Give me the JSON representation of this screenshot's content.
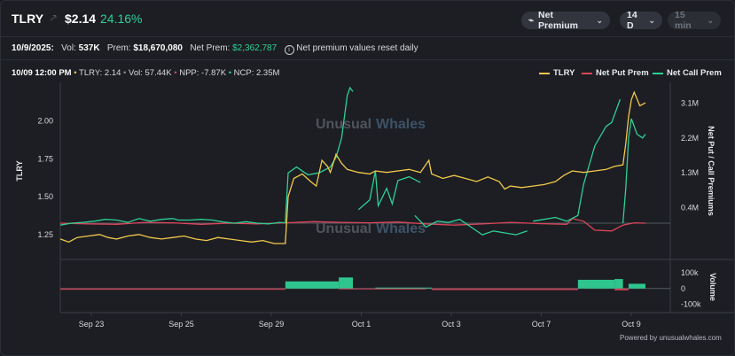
{
  "header": {
    "ticker": "TLRY",
    "price": "$2.14",
    "change_pct": "24.16%",
    "metric_select": "Net Premium",
    "timeframe_select": "14 D",
    "interval_select": "15 min"
  },
  "stats": {
    "date_label": "10/9/2025:",
    "vol_label": "Vol:",
    "vol_value": "537K",
    "prem_label": "Prem:",
    "prem_value": "$18,670,080",
    "net_prem_label": "Net Prem:",
    "net_prem_value": "$2,362,787",
    "info_note": "Net premium values reset daily"
  },
  "readout": {
    "time": "10/09 12:00 PM",
    "tlry": "TLRY: 2.14",
    "vol": "Vol: 57.44K",
    "npp": "NPP: -7.87K",
    "ncp": "NCP: 2.35M"
  },
  "legend": [
    {
      "label": "TLRY",
      "color": "#f2c84b"
    },
    {
      "label": "Net Put Prem",
      "color": "#e0455a"
    },
    {
      "label": "Net Call Prem",
      "color": "#2fcf95"
    }
  ],
  "watermark": {
    "brand1": "Unusual",
    "brand2": "Whales"
  },
  "powered_by": "Powered by unusualwhales.com",
  "chart_data": {
    "type": "line",
    "x_tick_labels": [
      "Sep 23",
      "Sep 25",
      "Sep 29",
      "Oct 1",
      "Oct 3",
      "Oct 7",
      "Oct 9"
    ],
    "left_axis": {
      "label": "TLRY",
      "ticks": [
        "2.00",
        "1.75",
        "1.50",
        "1.25"
      ],
      "range": [
        1.12,
        2.22
      ]
    },
    "right_axis": {
      "label": "Net Put / Call Premiums",
      "ticks": [
        "3.1M",
        "2.2M",
        "1.3M",
        "0.4M"
      ],
      "range": [
        -0.8,
        3.5
      ],
      "unit": "M"
    },
    "volume_axis": {
      "label": "Volume",
      "ticks": [
        "100k",
        "0",
        "-100k"
      ],
      "range": [
        -130,
        150
      ],
      "unit": "k"
    },
    "series": [
      {
        "name": "TLRY",
        "color": "#f2c84b",
        "points": [
          [
            0,
            1.22
          ],
          [
            0.15,
            1.2
          ],
          [
            0.3,
            1.23
          ],
          [
            0.5,
            1.24
          ],
          [
            0.7,
            1.25
          ],
          [
            0.85,
            1.23
          ],
          [
            1,
            1.22
          ],
          [
            1.2,
            1.24
          ],
          [
            1.4,
            1.25
          ],
          [
            1.6,
            1.23
          ],
          [
            1.8,
            1.22
          ],
          [
            2,
            1.23
          ],
          [
            2.2,
            1.24
          ],
          [
            2.4,
            1.22
          ],
          [
            2.6,
            1.21
          ],
          [
            2.8,
            1.23
          ],
          [
            3,
            1.22
          ],
          [
            3.2,
            1.21
          ],
          [
            3.4,
            1.2
          ],
          [
            3.6,
            1.21
          ],
          [
            3.8,
            1.19
          ],
          [
            4,
            1.19
          ],
          [
            4.05,
            1.5
          ],
          [
            4.15,
            1.62
          ],
          [
            4.3,
            1.65
          ],
          [
            4.45,
            1.6
          ],
          [
            4.55,
            1.57
          ],
          [
            4.65,
            1.74
          ],
          [
            4.75,
            1.7
          ],
          [
            4.8,
            1.66
          ],
          [
            4.9,
            1.78
          ],
          [
            5,
            1.72
          ],
          [
            5.1,
            1.68
          ],
          [
            5.3,
            1.66
          ],
          [
            5.5,
            1.65
          ],
          [
            5.6,
            1.67
          ],
          [
            5.8,
            1.66
          ],
          [
            6,
            1.67
          ],
          [
            6.2,
            1.68
          ],
          [
            6.4,
            1.66
          ],
          [
            6.55,
            1.74
          ],
          [
            6.6,
            1.65
          ],
          [
            6.8,
            1.62
          ],
          [
            7,
            1.64
          ],
          [
            7.2,
            1.62
          ],
          [
            7.4,
            1.6
          ],
          [
            7.6,
            1.63
          ],
          [
            7.8,
            1.6
          ],
          [
            7.9,
            1.55
          ],
          [
            8,
            1.57
          ],
          [
            8.2,
            1.56
          ],
          [
            8.4,
            1.57
          ],
          [
            8.6,
            1.58
          ],
          [
            8.8,
            1.6
          ],
          [
            8.95,
            1.64
          ],
          [
            9.1,
            1.67
          ],
          [
            9.3,
            1.66
          ],
          [
            9.5,
            1.67
          ],
          [
            9.7,
            1.68
          ],
          [
            9.85,
            1.7
          ],
          [
            10,
            1.71
          ],
          [
            10.05,
            1.85
          ],
          [
            10.1,
            2.03
          ],
          [
            10.15,
            2.14
          ],
          [
            10.2,
            2.19
          ],
          [
            10.3,
            2.1
          ],
          [
            10.4,
            2.12
          ]
        ]
      },
      {
        "name": "Net Put Prem",
        "color": "#e0455a",
        "points": [
          [
            0,
            0
          ],
          [
            0.5,
            -0.02
          ],
          [
            1,
            -0.03
          ],
          [
            1.5,
            0.02
          ],
          [
            2,
            0.01
          ],
          [
            2.5,
            -0.03
          ],
          [
            3,
            0
          ],
          [
            3.5,
            -0.02
          ],
          [
            4,
            0.01
          ],
          [
            4.5,
            0.04
          ],
          [
            5,
            0.02
          ],
          [
            5.5,
            0.01
          ],
          [
            6,
            0.03
          ],
          [
            6.5,
            -0.02
          ],
          [
            7,
            -0.05
          ],
          [
            7.5,
            -0.02
          ],
          [
            8,
            0.02
          ],
          [
            8.5,
            -0.01
          ],
          [
            9,
            -0.03
          ],
          [
            9.1,
            0.12
          ],
          [
            9.3,
            0.05
          ],
          [
            9.5,
            -0.18
          ],
          [
            9.8,
            -0.2
          ],
          [
            10,
            -0.05
          ],
          [
            10.2,
            0.01
          ],
          [
            10.4,
            0.0
          ]
        ]
      },
      {
        "name": "Net Call Prem",
        "color": "#2fcf95",
        "points": [
          [
            0,
            -0.05
          ],
          [
            0.2,
            0.0
          ],
          [
            0.4,
            0.02
          ],
          [
            0.6,
            0.05
          ],
          [
            0.8,
            0.1
          ],
          [
            1,
            0.08
          ],
          [
            1.2,
            0.02
          ],
          [
            1.4,
            0.12
          ],
          [
            1.6,
            0.05
          ],
          [
            1.8,
            0.1
          ],
          [
            2,
            0.12
          ],
          [
            2.1,
            0.08
          ],
          [
            2.3,
            0.08
          ],
          [
            2.5,
            0.1
          ],
          [
            2.7,
            0.08
          ],
          [
            2.9,
            0.03
          ],
          [
            3.1,
            0.0
          ],
          [
            3.3,
            0.04
          ],
          [
            3.5,
            0.0
          ],
          [
            3.7,
            -0.02
          ],
          [
            3.9,
            0.02
          ],
          [
            4,
            0.01
          ],
          [
            4.05,
            1.3
          ],
          [
            4.2,
            1.45
          ],
          [
            4.4,
            1.25
          ],
          [
            4.6,
            1.3
          ],
          [
            4.8,
            1.45
          ],
          [
            4.9,
            1.7
          ],
          [
            5,
            2.2
          ],
          [
            5.1,
            3.3
          ],
          [
            5.15,
            3.5
          ],
          [
            5.2,
            3.4
          ]
        ]
      }
    ],
    "volume": {
      "call_color": "#2fcf95",
      "put_color": "#e0455a",
      "note": "volume bars in thousands, x in trading-day index"
    }
  }
}
